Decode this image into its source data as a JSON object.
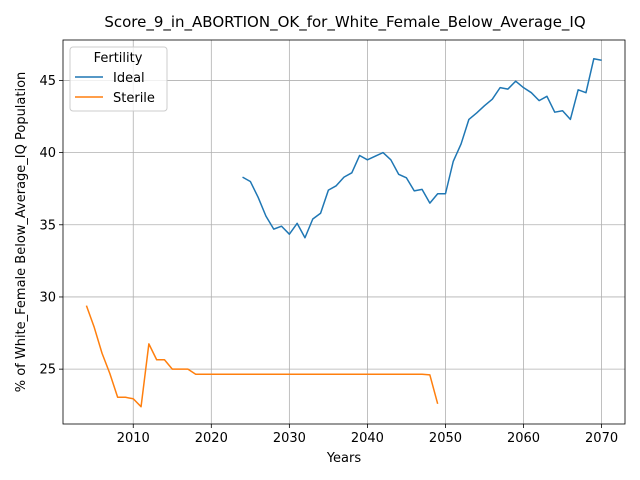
{
  "chart_data": {
    "type": "line",
    "title": "Score_9_in_ABORTION_OK_for_White_Female_Below_Average_IQ",
    "xlabel": "Years",
    "ylabel": "% of White_Female Below_Average_IQ Population",
    "xlim": [
      2001,
      2073
    ],
    "ylim": [
      21.2,
      47.8
    ],
    "xticks": [
      2010,
      2020,
      2030,
      2040,
      2050,
      2060,
      2070
    ],
    "yticks": [
      25,
      30,
      35,
      40,
      45
    ],
    "grid": true,
    "legend": {
      "title": "Fertility",
      "placement": "upper-left"
    },
    "series": [
      {
        "name": "Ideal",
        "color": "#1f77b4",
        "x": [
          2024,
          2025,
          2026,
          2027,
          2028,
          2029,
          2030,
          2031,
          2032,
          2033,
          2034,
          2035,
          2036,
          2037,
          2038,
          2039,
          2040,
          2041,
          2042,
          2043,
          2044,
          2045,
          2046,
          2047,
          2048,
          2049,
          2050,
          2051,
          2052,
          2053,
          2054,
          2055,
          2056,
          2057,
          2058,
          2059,
          2060,
          2061,
          2062,
          2063,
          2064,
          2065,
          2066,
          2067,
          2068,
          2069,
          2070
        ],
        "y": [
          38.3,
          38.0,
          36.9,
          35.6,
          34.7,
          34.9,
          34.35,
          35.1,
          34.1,
          35.4,
          35.8,
          37.4,
          37.7,
          38.3,
          38.6,
          39.8,
          39.5,
          39.75,
          40.0,
          39.5,
          38.5,
          38.25,
          37.35,
          37.45,
          36.5,
          37.15,
          37.15,
          39.4,
          40.6,
          42.3,
          42.75,
          43.25,
          43.7,
          44.5,
          44.4,
          44.95,
          44.5,
          44.15,
          43.6,
          43.9,
          42.8,
          42.9,
          42.3,
          44.35,
          44.15,
          46.5,
          46.4
        ]
      },
      {
        "name": "Sterile",
        "color": "#ff7f0e",
        "x": [
          2004,
          2005,
          2006,
          2007,
          2008,
          2009,
          2010,
          2011,
          2012,
          2013,
          2014,
          2015,
          2016,
          2017,
          2018,
          2019,
          2020,
          2021,
          2022,
          2023,
          2024,
          2025,
          2026,
          2027,
          2028,
          2029,
          2030,
          2031,
          2032,
          2033,
          2034,
          2035,
          2036,
          2037,
          2038,
          2039,
          2040,
          2041,
          2042,
          2043,
          2044,
          2045,
          2046,
          2047,
          2048,
          2049
        ],
        "y": [
          29.4,
          27.9,
          26.1,
          24.7,
          23.05,
          23.05,
          22.95,
          22.4,
          26.75,
          25.65,
          25.65,
          25.0,
          25.0,
          25.0,
          24.65,
          24.65,
          24.65,
          24.65,
          24.65,
          24.65,
          24.65,
          24.65,
          24.65,
          24.65,
          24.65,
          24.65,
          24.65,
          24.65,
          24.65,
          24.65,
          24.65,
          24.65,
          24.65,
          24.65,
          24.65,
          24.65,
          24.65,
          24.65,
          24.65,
          24.65,
          24.65,
          24.65,
          24.65,
          24.65,
          24.6,
          22.6
        ]
      }
    ]
  }
}
